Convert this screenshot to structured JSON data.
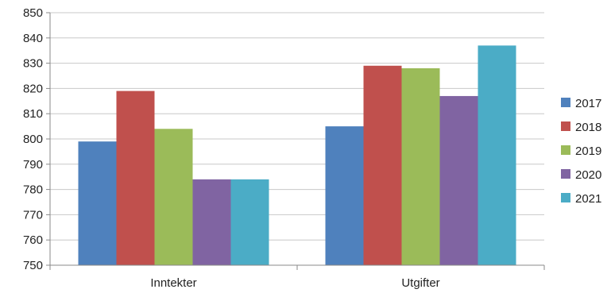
{
  "chart_data": {
    "type": "bar",
    "categories": [
      "Inntekter",
      "Utgifter"
    ],
    "series": [
      {
        "name": "2017",
        "values": [
          799,
          805
        ],
        "color": "#4F81BD"
      },
      {
        "name": "2018",
        "values": [
          819,
          829
        ],
        "color": "#C0504D"
      },
      {
        "name": "2019",
        "values": [
          804,
          828
        ],
        "color": "#9BBB59"
      },
      {
        "name": "2020",
        "values": [
          784,
          817
        ],
        "color": "#8064A2"
      },
      {
        "name": "2021",
        "values": [
          784,
          837
        ],
        "color": "#4BACC6"
      }
    ],
    "title": "",
    "xlabel": "",
    "ylabel": "",
    "ylim": [
      750,
      850
    ],
    "yticks": [
      750,
      760,
      770,
      780,
      790,
      800,
      810,
      820,
      830,
      840,
      850
    ],
    "grid": true,
    "legend_position": "right"
  }
}
